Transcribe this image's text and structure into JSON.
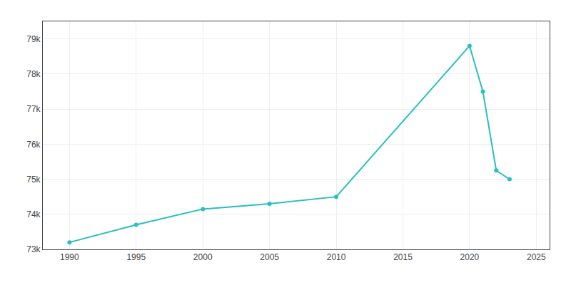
{
  "chart_data": {
    "type": "line",
    "x": [
      1990,
      1995,
      2000,
      2005,
      2010,
      2020,
      2021,
      2022,
      2023
    ],
    "values": [
      73200,
      73700,
      74150,
      74300,
      74500,
      78800,
      77500,
      75250,
      75000
    ],
    "color": "#2abfbf",
    "marker": "circle",
    "xlim": [
      1988,
      2026
    ],
    "xticks": [
      1990,
      1995,
      2000,
      2005,
      2010,
      2015,
      2020,
      2025
    ],
    "ylim": [
      73000,
      79500
    ],
    "yticks": [
      {
        "value": 73000,
        "label": "73k"
      },
      {
        "value": 74000,
        "label": "74k"
      },
      {
        "value": 75000,
        "label": "75k"
      },
      {
        "value": 76000,
        "label": "76k"
      },
      {
        "value": 77000,
        "label": "77k"
      },
      {
        "value": 78000,
        "label": "78k"
      },
      {
        "value": 79000,
        "label": "79k"
      }
    ],
    "grid": true
  }
}
